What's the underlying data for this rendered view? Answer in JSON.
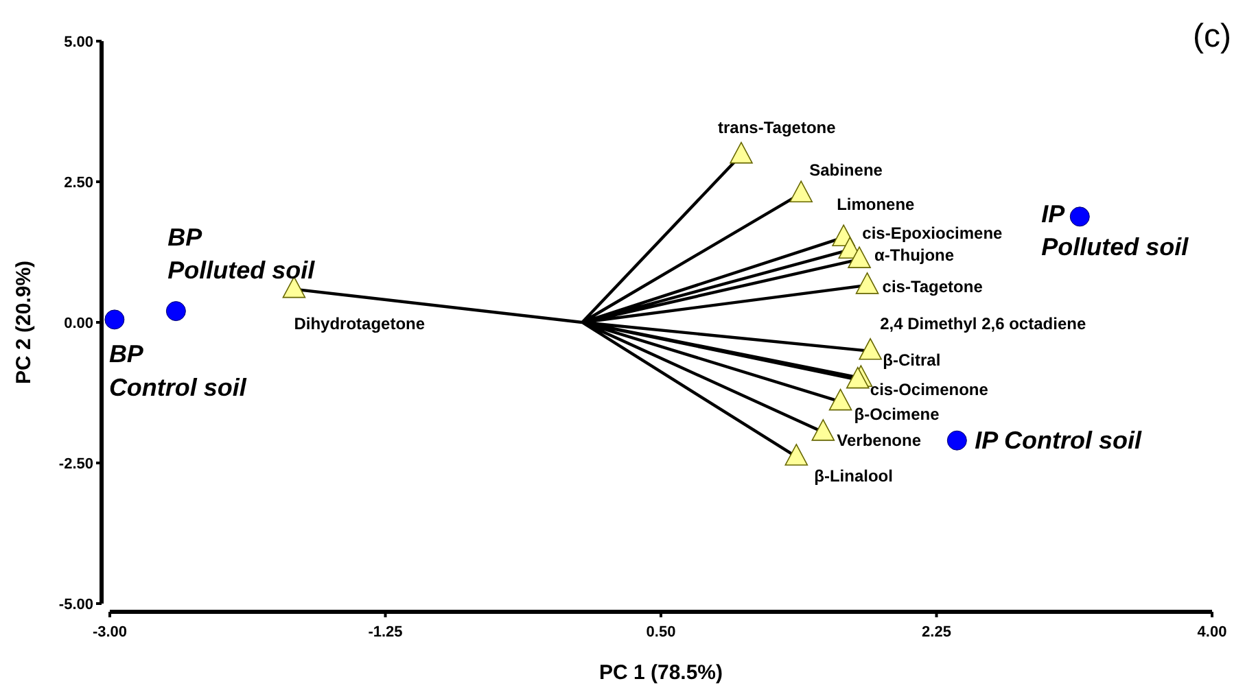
{
  "chart_data": {
    "type": "scatter",
    "title": "(c)",
    "xlabel": "PC 1 (78.5%)",
    "ylabel": "PC 2 (20.9%)",
    "xlim": [
      -3,
      4
    ],
    "ylim": [
      -5,
      5
    ],
    "xticks": [
      {
        "value": -3,
        "label": "-3.00"
      },
      {
        "value": -1.25,
        "label": "-1.25"
      },
      {
        "value": 0.5,
        "label": "0.50"
      },
      {
        "value": 2.25,
        "label": "2.25"
      },
      {
        "value": 4,
        "label": "4.00"
      }
    ],
    "yticks": [
      {
        "value": -5,
        "label": "-5.00"
      },
      {
        "value": -2.5,
        "label": "-2.50"
      },
      {
        "value": 0,
        "label": "0.00"
      },
      {
        "value": 2.5,
        "label": "2.50"
      },
      {
        "value": 5,
        "label": "5.00"
      }
    ],
    "grid": false,
    "series": [
      {
        "type": "line",
        "color": "#000000",
        "x": [
          0,
          -1.83,
          null,
          0,
          1.01,
          null,
          0,
          1.39,
          null,
          0,
          1.66,
          null,
          0,
          1.7,
          null,
          0,
          1.76,
          null,
          0,
          1.81,
          null,
          0,
          1.83,
          null,
          0,
          1.77,
          null,
          0,
          1.75,
          null,
          0,
          1.64,
          null,
          0,
          1.53,
          null,
          0,
          1.36
        ],
        "values": [
          0,
          0.59,
          null,
          0,
          2.98,
          null,
          0,
          2.29,
          null,
          0,
          1.51,
          null,
          0,
          1.29,
          null,
          0,
          1.12,
          null,
          0,
          0.66,
          null,
          0,
          -0.51,
          null,
          0,
          -0.99,
          null,
          0,
          -1.02,
          null,
          0,
          -1.41,
          null,
          0,
          -1.95,
          null,
          0,
          -2.39
        ]
      },
      {
        "color": "#ffff99",
        "marker": "triangle",
        "x": [
          -1.83,
          1.01,
          1.39,
          1.66,
          1.7,
          1.76,
          1.81,
          1.83,
          1.77,
          1.75,
          1.64,
          1.53,
          1.36
        ],
        "values": [
          0.59,
          2.98,
          2.29,
          1.51,
          1.29,
          1.12,
          0.66,
          -0.51,
          -0.99,
          -1.02,
          -1.41,
          -1.95,
          -2.39
        ]
      },
      {
        "color": "#0000ff",
        "marker": "circle",
        "x": [
          -2.97,
          -2.58,
          3.16,
          2.38
        ],
        "values": [
          0.05,
          0.2,
          1.88,
          -2.1
        ]
      }
    ],
    "annotations": [
      {
        "text": "Dihydrotagetone",
        "x": -1.83,
        "y": 0.59
      },
      {
        "text": "trans-Tagetone",
        "x": 1.01,
        "y": 2.98
      },
      {
        "text": "Sabinene",
        "x": 1.39,
        "y": 2.29
      },
      {
        "text": "Limonene",
        "x": 1.66,
        "y": 1.51
      },
      {
        "text": "cis-Epoxiocimene",
        "x": 1.7,
        "y": 1.29
      },
      {
        "text": "α-Thujone",
        "x": 1.76,
        "y": 1.12
      },
      {
        "text": "cis-Tagetone",
        "x": 1.81,
        "y": 0.66
      },
      {
        "text": "2,4 Dimethyl 2,6 octadiene",
        "x": 1.83,
        "y": -0.51
      },
      {
        "text": "β-Citral",
        "x": 1.77,
        "y": -0.99
      },
      {
        "text": "cis-Ocimenone",
        "x": 1.75,
        "y": -1.02
      },
      {
        "text": "β-Ocimene",
        "x": 1.64,
        "y": -1.41
      },
      {
        "text": "Verbenone",
        "x": 1.53,
        "y": -1.95
      },
      {
        "text": "β-Linalool",
        "x": 1.36,
        "y": -2.39
      },
      {
        "text": "BP\nControl soil",
        "x": -2.97,
        "y": 0.05
      },
      {
        "text": "BP\nPolluted soil",
        "x": -2.58,
        "y": 0.2
      },
      {
        "text": "IP\nPolluted soil",
        "x": 3.16,
        "y": 1.88
      },
      {
        "text": "IP Control soil",
        "x": 2.38,
        "y": -2.1
      }
    ]
  }
}
